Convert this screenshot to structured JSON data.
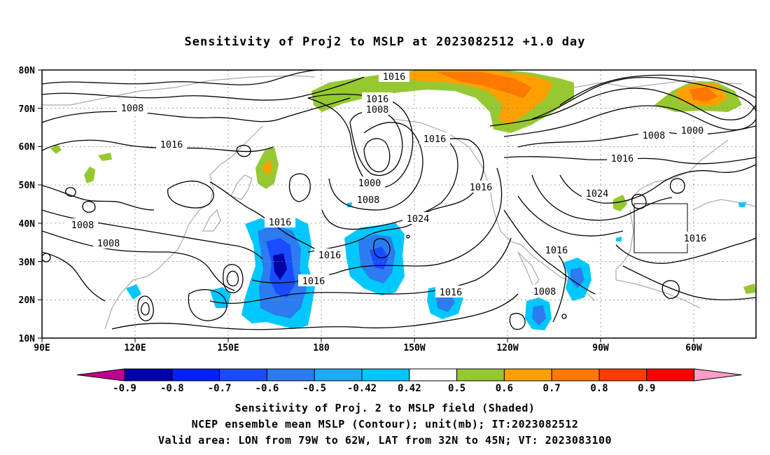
{
  "title": "Sensitivity of Proj2 to MSLP at 2023082512 +1.0 day",
  "axes": {
    "lat_labels": [
      "80N",
      "70N",
      "60N",
      "50N",
      "40N",
      "30N",
      "20N",
      "10N"
    ],
    "lon_labels": [
      "90E",
      "120E",
      "150E",
      "180",
      "150W",
      "120W",
      "90W",
      "60W"
    ]
  },
  "contour_labels": [
    "1016",
    "1016",
    "1008",
    "1008",
    "1016",
    "1016",
    "1000",
    "1008",
    "1016",
    "1024",
    "1016",
    "1016",
    "1008",
    "1016",
    "1016",
    "1016",
    "1008",
    "1000",
    "1016",
    "1024",
    "1016",
    "1008",
    "1016",
    "1008"
  ],
  "colorbar": {
    "labels": [
      "-0.9",
      "-0.8",
      "-0.7",
      "-0.6",
      "-0.5",
      "-0.42",
      "0.42",
      "0.5",
      "0.6",
      "0.7",
      "0.8",
      "0.9"
    ],
    "colors": [
      "#0000a8",
      "#0020ff",
      "#1a4cff",
      "#2c7cf0",
      "#1eaaf5",
      "#00c8ff",
      "#ffffff",
      "#96c832",
      "#ffa000",
      "#ff7800",
      "#ff3c00",
      "#ff0000"
    ],
    "end_low": "#c00090",
    "end_high": "#ff9ec8"
  },
  "captions": {
    "line1": "Sensitivity of Proj. 2 to MSLP field (Shaded)",
    "line2": "NCEP ensemble mean MSLP (Contour); unit(mb); IT:2023082512",
    "line3": "Valid area: LON from 79W to 62W, LAT from 32N to 45N; VT: 2023083100"
  }
}
